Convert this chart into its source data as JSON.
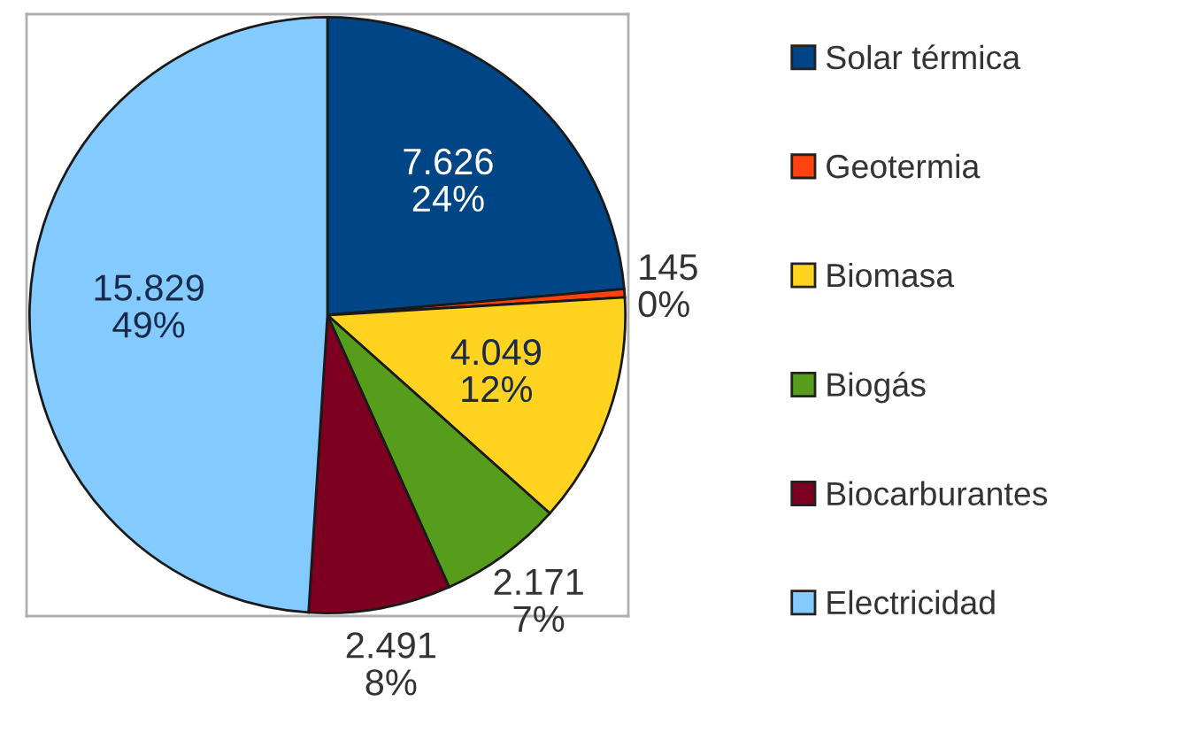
{
  "chart_data": {
    "type": "pie",
    "categories": [
      "Solar térmica",
      "Geotermia",
      "Biomasa",
      "Biogás",
      "Biocarburantes",
      "Electricidad"
    ],
    "values": [
      7626,
      145,
      4049,
      2171,
      2491,
      15829
    ],
    "value_labels": [
      "7.626\n24%",
      "145\n0%",
      "4.049\n12%",
      "2.171\n7%",
      "2.491\n8%",
      "15.829\n49%"
    ],
    "colors": [
      "#004586",
      "#ff420e",
      "#ffd320",
      "#579d1c",
      "#7e0021",
      "#83caff"
    ],
    "legend": "right"
  }
}
